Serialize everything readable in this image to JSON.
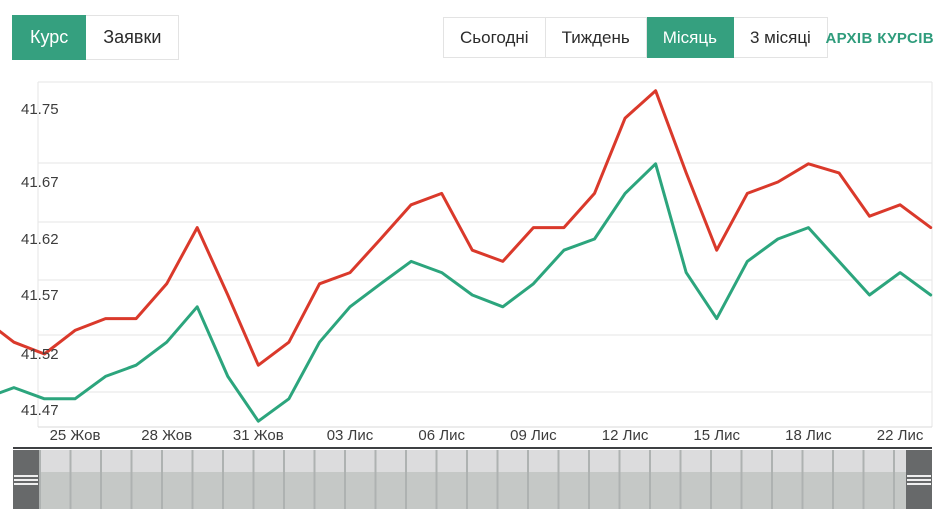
{
  "header": {
    "view_toggle": {
      "items": [
        {
          "label": "Курс",
          "active": true
        },
        {
          "label": "Заявки",
          "active": false
        }
      ]
    },
    "period_tabs": {
      "items": [
        {
          "label": "Сьогодні",
          "active": false
        },
        {
          "label": "Тиждень",
          "active": false
        },
        {
          "label": "Місяць",
          "active": true
        },
        {
          "label": "3 місяці",
          "active": false
        }
      ]
    },
    "archive_link_label": "АРХІВ КУРСІВ"
  },
  "colors": {
    "accent_green": "#35a07f",
    "link_green": "#2f9c7c",
    "line_red": "#da392b",
    "line_green": "#2ca57d",
    "grid_gray": "#e6e6e6",
    "axis_text": "#3c3c3c",
    "slider_handle": "#67696a",
    "slider_band_light": "#dcdcdd",
    "slider_band_dark": "#c5c8c6"
  },
  "chart_data": {
    "type": "line",
    "title": "",
    "xlabel": "",
    "ylabel": "",
    "grid": true,
    "legend": "none",
    "ylim": [
      41.45,
      41.78
    ],
    "y_axis": {
      "tick_labels": [
        "41.75",
        "41.67",
        "41.62",
        "41.57",
        "41.52",
        "41.47"
      ]
    },
    "x_axis": {
      "tick_labels": [
        "25 Жов",
        "28 Жов",
        "31 Жов",
        "03 Лис",
        "06 Лис",
        "09 Лис",
        "12 Лис",
        "15 Лис",
        "18 Лис",
        "22 Лис"
      ],
      "tick_indices": [
        3,
        6,
        9,
        12,
        15,
        18,
        21,
        24,
        27,
        30
      ]
    },
    "series": [
      {
        "name": "red-line",
        "color": "#da392b",
        "values": [
          41.55,
          41.53,
          41.52,
          41.54,
          41.55,
          41.55,
          41.58,
          41.63,
          41.57,
          41.51,
          41.53,
          41.58,
          41.59,
          41.62,
          41.65,
          41.66,
          41.61,
          41.6,
          41.63,
          41.63,
          41.66,
          41.74,
          41.77,
          41.68,
          41.61,
          41.66,
          41.67,
          41.69,
          41.68,
          41.64,
          41.65,
          41.63
        ]
      },
      {
        "name": "green-line",
        "color": "#2ca57d",
        "values": [
          41.48,
          41.49,
          41.48,
          41.48,
          41.5,
          41.51,
          41.53,
          41.56,
          41.5,
          41.46,
          41.48,
          41.53,
          41.56,
          41.58,
          41.6,
          41.59,
          41.57,
          41.56,
          41.58,
          41.61,
          41.62,
          41.66,
          41.69,
          41.59,
          41.55,
          41.6,
          41.62,
          41.63,
          41.6,
          41.57,
          41.59,
          41.57
        ]
      }
    ]
  }
}
